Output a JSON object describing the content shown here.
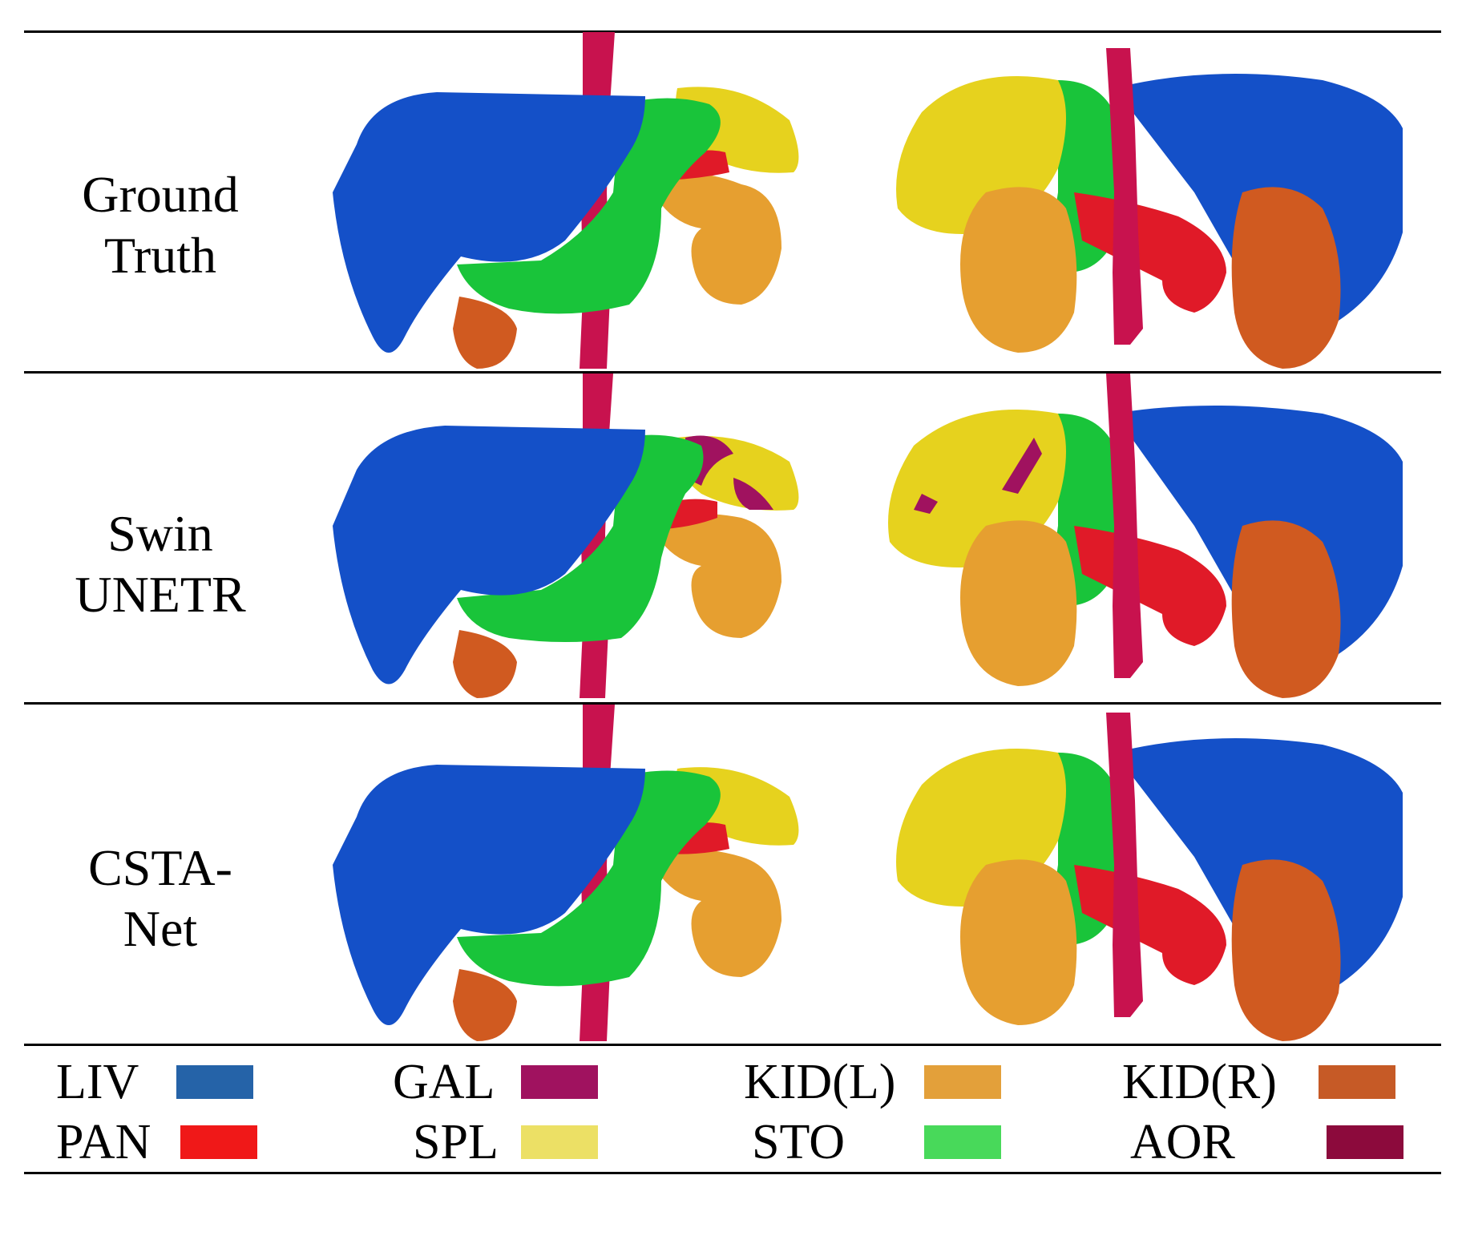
{
  "rows": [
    {
      "label_line1": "Ground",
      "label_line2": "Truth"
    },
    {
      "label_line1": "Swin",
      "label_line2": "UNETR"
    },
    {
      "label_line1": "CSTA-",
      "label_line2": "Net"
    }
  ],
  "legend": [
    {
      "label": "LIV",
      "color": "#2563a8"
    },
    {
      "label": "GAL",
      "color": "#a0125f"
    },
    {
      "label": "KID(L)",
      "color": "#e3a03a"
    },
    {
      "label": "KID(R)",
      "color": "#c65a26"
    },
    {
      "label": "PAN",
      "color": "#f01818"
    },
    {
      "label": "SPL",
      "color": "#ece065"
    },
    {
      "label": "STO",
      "color": "#48d95a"
    },
    {
      "label": "AOR",
      "color": "#8c0a3c"
    }
  ],
  "organ_colors": {
    "liver": "#1450c8",
    "stomach": "#19c43a",
    "spleen": "#e6d21e",
    "kidney_left": "#e69f30",
    "kidney_right": "#d05a20",
    "pancreas": "#e01a28",
    "aorta": "#c8124e",
    "gallbladder": "#a0125f"
  }
}
